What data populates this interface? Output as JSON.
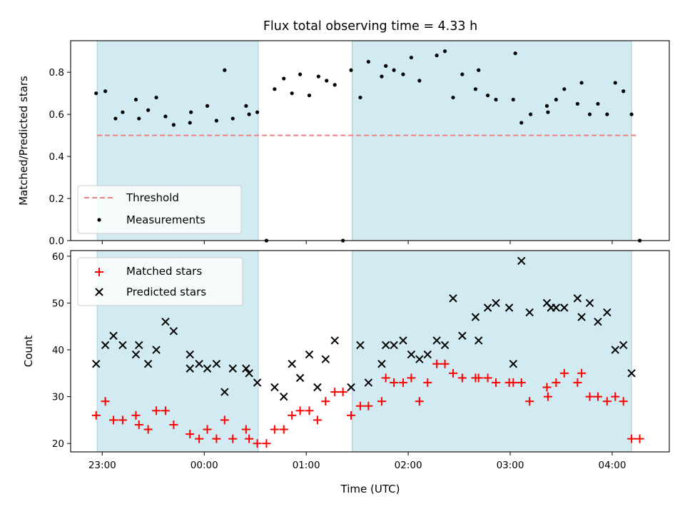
{
  "chart_data": [
    {
      "type": "scatter",
      "title": "Flux total observing time = 4.33 h",
      "xlabel": "",
      "ylabel": "Matched/Predicted stars",
      "ylim": [
        0,
        0.95
      ],
      "yticks": [
        "0.0",
        "0.2",
        "0.4",
        "0.6",
        "0.8"
      ],
      "xticks": [
        "23:00",
        "00:00",
        "01:00",
        "02:00",
        "03:00",
        "04:00"
      ],
      "xlim_hours": [
        22.69,
        28.56
      ],
      "shaded_intervals_hours": [
        [
          22.95,
          24.53
        ],
        [
          25.45,
          28.19
        ]
      ],
      "shade_color": "#add8e6",
      "threshold": {
        "name": "Threshold",
        "value": 0.5,
        "x_start": 22.95,
        "x_end": 28.25,
        "color": "#f08080"
      },
      "legend": {
        "placement": "lower-left",
        "entries": [
          "Threshold",
          "Measurements"
        ]
      },
      "series": [
        {
          "name": "Measurements",
          "color": "#000000",
          "x_hours": [
            22.94,
            23.03,
            23.13,
            23.2,
            23.33,
            23.36,
            23.45,
            23.53,
            23.62,
            23.7,
            23.86,
            23.87,
            24.03,
            24.12,
            24.2,
            24.28,
            24.41,
            24.44,
            24.52,
            24.61,
            24.69,
            24.78,
            24.86,
            24.94,
            25.03,
            25.12,
            25.2,
            25.28,
            25.36,
            25.44,
            25.53,
            25.61,
            25.74,
            25.78,
            25.86,
            25.95,
            26.03,
            26.11,
            26.28,
            26.36,
            26.44,
            26.53,
            26.66,
            26.69,
            26.78,
            26.86,
            27.03,
            27.05,
            27.11,
            27.2,
            27.36,
            27.37,
            27.45,
            27.53,
            27.66,
            27.7,
            27.78,
            27.86,
            27.95,
            28.03,
            28.11,
            28.19,
            28.27
          ],
          "values": [
            0.7,
            0.71,
            0.58,
            0.61,
            0.67,
            0.58,
            0.62,
            0.68,
            0.59,
            0.55,
            0.56,
            0.61,
            0.64,
            0.57,
            0.81,
            0.58,
            0.64,
            0.6,
            0.61,
            0.0,
            0.72,
            0.77,
            0.7,
            0.79,
            0.69,
            0.78,
            0.76,
            0.74,
            0.0,
            0.81,
            0.68,
            0.85,
            0.78,
            0.83,
            0.81,
            0.79,
            0.87,
            0.76,
            0.88,
            0.9,
            0.68,
            0.79,
            0.72,
            0.81,
            0.69,
            0.67,
            0.67,
            0.89,
            0.56,
            0.6,
            0.64,
            0.61,
            0.67,
            0.72,
            0.65,
            0.75,
            0.6,
            0.65,
            0.6,
            0.75,
            0.71,
            0.6,
            0.0
          ]
        }
      ]
    },
    {
      "type": "scatter",
      "xlabel": "Time (UTC)",
      "ylabel": "Count",
      "ylim": [
        18.2,
        61.2
      ],
      "yticks": [
        "20",
        "30",
        "40",
        "50",
        "60"
      ],
      "xticks": [
        "23:00",
        "00:00",
        "01:00",
        "02:00",
        "03:00",
        "04:00"
      ],
      "xlim_hours": [
        22.69,
        28.56
      ],
      "shaded_intervals_hours": [
        [
          22.95,
          24.53
        ],
        [
          25.45,
          28.19
        ]
      ],
      "shade_color": "#add8e6",
      "legend": {
        "placement": "upper-left",
        "entries": [
          "Matched stars",
          "Predicted stars"
        ]
      },
      "series": [
        {
          "name": "Matched stars",
          "marker": "plus",
          "color": "#ff0000",
          "points": [
            [
              22.94,
              26
            ],
            [
              23.03,
              29
            ],
            [
              23.11,
              25
            ],
            [
              23.2,
              25
            ],
            [
              23.33,
              26
            ],
            [
              23.36,
              24
            ],
            [
              23.45,
              23
            ],
            [
              23.53,
              27
            ],
            [
              23.62,
              27
            ],
            [
              23.7,
              24
            ],
            [
              23.86,
              22
            ],
            [
              23.95,
              21
            ],
            [
              24.03,
              23
            ],
            [
              24.12,
              21
            ],
            [
              24.2,
              25
            ],
            [
              24.28,
              21
            ],
            [
              24.41,
              23
            ],
            [
              24.44,
              21
            ],
            [
              24.52,
              20
            ],
            [
              24.61,
              20
            ],
            [
              24.69,
              23
            ],
            [
              24.78,
              23
            ],
            [
              24.86,
              26
            ],
            [
              24.94,
              27
            ],
            [
              25.03,
              27
            ],
            [
              25.11,
              25
            ],
            [
              25.19,
              29
            ],
            [
              25.28,
              31
            ],
            [
              25.36,
              31
            ],
            [
              25.44,
              26
            ],
            [
              25.53,
              28
            ],
            [
              25.61,
              28
            ],
            [
              25.74,
              29
            ],
            [
              25.78,
              34
            ],
            [
              25.86,
              33
            ],
            [
              25.95,
              33
            ],
            [
              26.03,
              34
            ],
            [
              26.11,
              29
            ],
            [
              26.19,
              33
            ],
            [
              26.28,
              37
            ],
            [
              26.36,
              37
            ],
            [
              26.44,
              35
            ],
            [
              26.53,
              34
            ],
            [
              26.66,
              34
            ],
            [
              26.69,
              34
            ],
            [
              26.78,
              34
            ],
            [
              26.86,
              33
            ],
            [
              26.99,
              33
            ],
            [
              27.03,
              33
            ],
            [
              27.11,
              33
            ],
            [
              27.19,
              29
            ],
            [
              27.36,
              32
            ],
            [
              27.37,
              30
            ],
            [
              27.45,
              33
            ],
            [
              27.53,
              35
            ],
            [
              27.66,
              33
            ],
            [
              27.7,
              35
            ],
            [
              27.78,
              30
            ],
            [
              27.86,
              30
            ],
            [
              27.95,
              29
            ],
            [
              28.03,
              30
            ],
            [
              28.11,
              29
            ],
            [
              28.19,
              21
            ],
            [
              28.27,
              21
            ]
          ]
        },
        {
          "name": "Predicted stars",
          "marker": "x",
          "color": "#000000",
          "points": [
            [
              22.94,
              37
            ],
            [
              23.03,
              41
            ],
            [
              23.11,
              43
            ],
            [
              23.2,
              41
            ],
            [
              23.33,
              39
            ],
            [
              23.36,
              41
            ],
            [
              23.45,
              37
            ],
            [
              23.53,
              40
            ],
            [
              23.62,
              46
            ],
            [
              23.7,
              44
            ],
            [
              23.86,
              39
            ],
            [
              23.86,
              36
            ],
            [
              23.95,
              37
            ],
            [
              24.03,
              36
            ],
            [
              24.12,
              37
            ],
            [
              24.2,
              31
            ],
            [
              24.28,
              36
            ],
            [
              24.41,
              36
            ],
            [
              24.44,
              35
            ],
            [
              24.52,
              33
            ],
            [
              24.69,
              32
            ],
            [
              24.78,
              30
            ],
            [
              24.86,
              37
            ],
            [
              24.94,
              34
            ],
            [
              25.03,
              39
            ],
            [
              25.11,
              32
            ],
            [
              25.19,
              38
            ],
            [
              25.28,
              42
            ],
            [
              25.44,
              32
            ],
            [
              25.53,
              41
            ],
            [
              25.61,
              33
            ],
            [
              25.74,
              37
            ],
            [
              25.78,
              41
            ],
            [
              25.86,
              41
            ],
            [
              25.95,
              42
            ],
            [
              26.03,
              39
            ],
            [
              26.11,
              38
            ],
            [
              26.19,
              39
            ],
            [
              26.28,
              42
            ],
            [
              26.36,
              41
            ],
            [
              26.44,
              51
            ],
            [
              26.53,
              43
            ],
            [
              26.66,
              47
            ],
            [
              26.69,
              42
            ],
            [
              26.78,
              49
            ],
            [
              26.86,
              50
            ],
            [
              26.99,
              49
            ],
            [
              27.03,
              37
            ],
            [
              27.11,
              59
            ],
            [
              27.19,
              48
            ],
            [
              27.36,
              50
            ],
            [
              27.4,
              49
            ],
            [
              27.45,
              49
            ],
            [
              27.53,
              49
            ],
            [
              27.66,
              51
            ],
            [
              27.7,
              47
            ],
            [
              27.78,
              50
            ],
            [
              27.86,
              46
            ],
            [
              27.95,
              48
            ],
            [
              28.03,
              40
            ],
            [
              28.11,
              41
            ],
            [
              28.19,
              35
            ]
          ]
        }
      ]
    }
  ]
}
